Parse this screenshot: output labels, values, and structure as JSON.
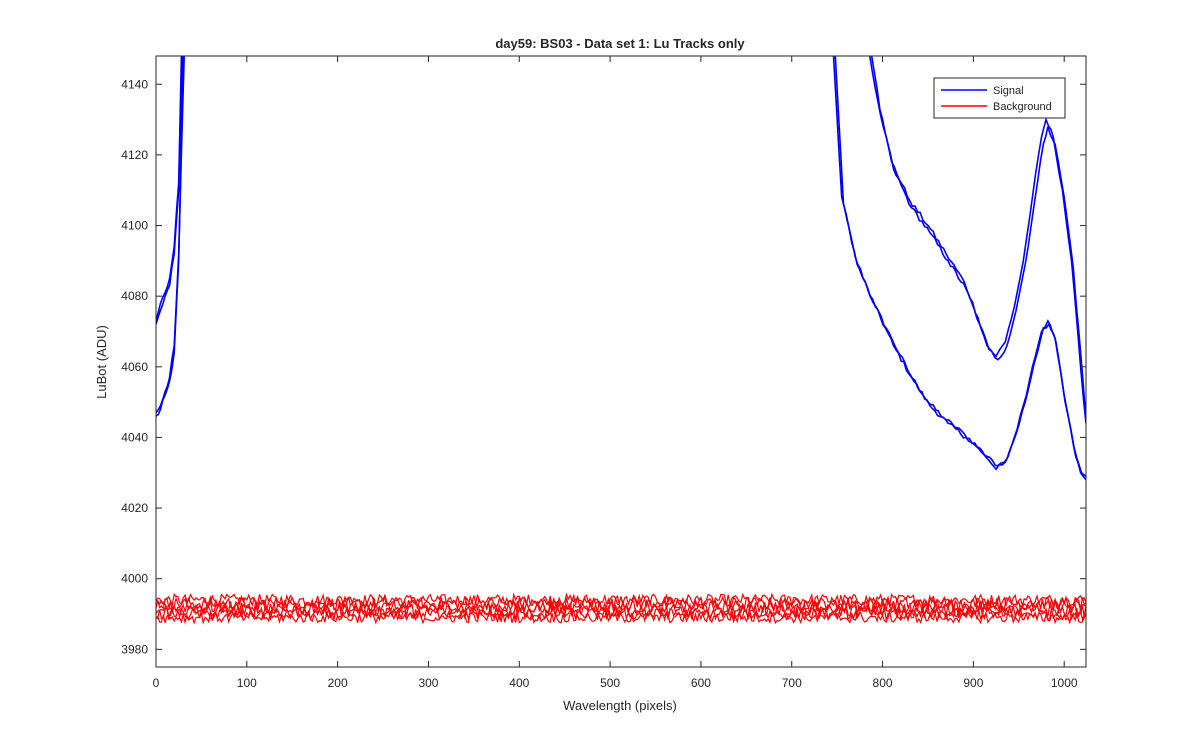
{
  "chart_data": {
    "type": "line",
    "title": "day59: BS03 - Data set 1: Lu Tracks only",
    "xlabel": "Wavelength (pixels)",
    "ylabel": "LuBot (ADU)",
    "xlim": [
      0,
      1024
    ],
    "ylim": [
      3975,
      4148
    ],
    "xticks": [
      0,
      100,
      200,
      300,
      400,
      500,
      600,
      700,
      800,
      900,
      1000
    ],
    "yticks": [
      3980,
      4000,
      4020,
      4040,
      4060,
      4080,
      4100,
      4120,
      4140
    ],
    "grid": false,
    "legend_position": "top-right",
    "legend": [
      {
        "label": "Signal",
        "color": "#0000ff"
      },
      {
        "label": "Background",
        "color": "#ff0000"
      }
    ],
    "series": [
      {
        "group": "signal",
        "color": "#0000ff",
        "points": [
          [
            0,
            4072
          ],
          [
            5,
            4076
          ],
          [
            10,
            4080
          ],
          [
            15,
            4083
          ],
          [
            20,
            4092
          ],
          [
            25,
            4110
          ],
          [
            29,
            4148
          ],
          [
            746,
            4148
          ],
          [
            755,
            4108
          ],
          [
            770,
            4091
          ],
          [
            790,
            4078
          ],
          [
            810,
            4068
          ],
          [
            830,
            4058
          ],
          [
            850,
            4050
          ],
          [
            870,
            4045
          ],
          [
            890,
            4041
          ],
          [
            910,
            4036
          ],
          [
            925,
            4031
          ],
          [
            935,
            4033
          ],
          [
            945,
            4040
          ],
          [
            955,
            4049
          ],
          [
            965,
            4060
          ],
          [
            975,
            4070
          ],
          [
            982,
            4073
          ],
          [
            990,
            4068
          ],
          [
            1000,
            4052
          ],
          [
            1010,
            4038
          ],
          [
            1018,
            4030
          ],
          [
            1024,
            4028
          ]
        ]
      },
      {
        "group": "signal",
        "color": "#0000ff",
        "points": [
          [
            0,
            4073
          ],
          [
            5,
            4078
          ],
          [
            10,
            4081
          ],
          [
            15,
            4085
          ],
          [
            20,
            4094
          ],
          [
            25,
            4112
          ],
          [
            28,
            4148
          ],
          [
            748,
            4148
          ],
          [
            757,
            4106
          ],
          [
            772,
            4089
          ],
          [
            792,
            4077
          ],
          [
            812,
            4066
          ],
          [
            832,
            4057
          ],
          [
            852,
            4049
          ],
          [
            872,
            4044
          ],
          [
            892,
            4040
          ],
          [
            912,
            4035
          ],
          [
            927,
            4032
          ],
          [
            937,
            4034
          ],
          [
            947,
            4041
          ],
          [
            957,
            4050
          ],
          [
            967,
            4061
          ],
          [
            977,
            4071
          ],
          [
            983,
            4072
          ],
          [
            991,
            4067
          ],
          [
            1001,
            4050
          ],
          [
            1011,
            4037
          ],
          [
            1019,
            4030
          ],
          [
            1024,
            4029
          ]
        ]
      },
      {
        "group": "signal",
        "color": "#0000ff",
        "points": [
          [
            0,
            4046
          ],
          [
            5,
            4048
          ],
          [
            10,
            4052
          ],
          [
            15,
            4056
          ],
          [
            20,
            4064
          ],
          [
            25,
            4090
          ],
          [
            30,
            4148
          ],
          [
            786,
            4148
          ],
          [
            795,
            4135
          ],
          [
            810,
            4118
          ],
          [
            830,
            4107
          ],
          [
            850,
            4100
          ],
          [
            870,
            4092
          ],
          [
            890,
            4084
          ],
          [
            905,
            4074
          ],
          [
            915,
            4066
          ],
          [
            925,
            4063
          ],
          [
            935,
            4067
          ],
          [
            945,
            4077
          ],
          [
            955,
            4090
          ],
          [
            965,
            4108
          ],
          [
            975,
            4125
          ],
          [
            980,
            4130
          ],
          [
            988,
            4125
          ],
          [
            998,
            4110
          ],
          [
            1008,
            4090
          ],
          [
            1018,
            4060
          ],
          [
            1024,
            4044
          ]
        ]
      },
      {
        "group": "signal",
        "color": "#0000ff",
        "points": [
          [
            0,
            4047
          ],
          [
            5,
            4049
          ],
          [
            10,
            4053
          ],
          [
            15,
            4057
          ],
          [
            20,
            4066
          ],
          [
            25,
            4092
          ],
          [
            31,
            4148
          ],
          [
            788,
            4148
          ],
          [
            797,
            4133
          ],
          [
            812,
            4116
          ],
          [
            832,
            4105
          ],
          [
            852,
            4098
          ],
          [
            872,
            4090
          ],
          [
            892,
            4082
          ],
          [
            907,
            4072
          ],
          [
            917,
            4065
          ],
          [
            927,
            4062
          ],
          [
            937,
            4066
          ],
          [
            947,
            4076
          ],
          [
            957,
            4089
          ],
          [
            967,
            4106
          ],
          [
            977,
            4123
          ],
          [
            982,
            4128
          ],
          [
            990,
            4123
          ],
          [
            1000,
            4108
          ],
          [
            1010,
            4088
          ],
          [
            1020,
            4058
          ],
          [
            1024,
            4045
          ]
        ]
      },
      {
        "group": "background",
        "color": "#ff0000",
        "center": 3994,
        "amplitude": 1.6
      },
      {
        "group": "background",
        "color": "#ff0000",
        "center": 3993,
        "amplitude": 1.8
      },
      {
        "group": "background",
        "color": "#ff0000",
        "center": 3992,
        "amplitude": 1.8
      },
      {
        "group": "background",
        "color": "#ff0000",
        "center": 3991,
        "amplitude": 1.8
      },
      {
        "group": "background",
        "color": "#ff0000",
        "center": 3990,
        "amplitude": 1.6
      },
      {
        "group": "background",
        "color": "#ff0000",
        "center": 3989,
        "amplitude": 1.5
      }
    ]
  }
}
